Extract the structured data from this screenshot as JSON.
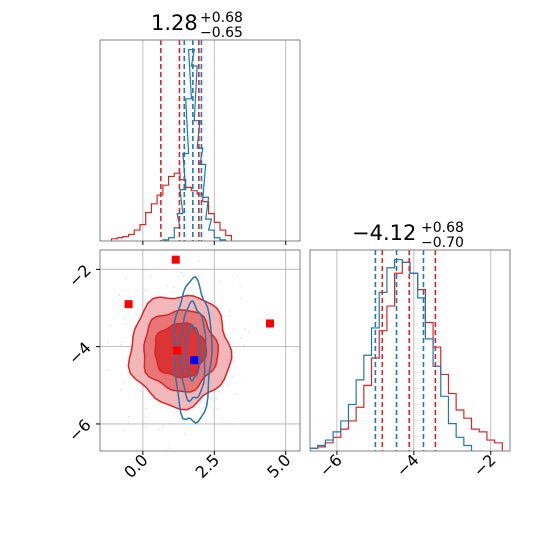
{
  "colors": {
    "red": "#d62728",
    "blue": "#1f77b4",
    "grid": "#b0b0b0",
    "frame": "#808080",
    "marker_red": "#ff0000",
    "marker_blue": "#0000ff"
  },
  "chart_data": [
    {
      "type": "line",
      "panel": "marginal-param-1",
      "title": {
        "value": "1.28",
        "upper": "+0.68",
        "lower": "−0.65"
      },
      "xlim": [
        -1.5,
        5.5
      ],
      "grid": true,
      "quantile_lines": [
        {
          "series": "red",
          "x": [
            0.63,
            1.28,
            1.96
          ]
        },
        {
          "series": "blue",
          "x": [
            1.45,
            1.75,
            2.05
          ]
        }
      ],
      "series": [
        {
          "color": "red",
          "x": [
            -1.0,
            -0.8,
            -0.6,
            -0.4,
            -0.2,
            0.0,
            0.2,
            0.4,
            0.6,
            0.8,
            1.0,
            1.2,
            1.4,
            1.6,
            1.8,
            2.0,
            2.2,
            2.4,
            2.6,
            2.8,
            3.0
          ],
          "y": [
            0.2,
            0.3,
            0.4,
            0.6,
            1.0,
            1.5,
            2.6,
            3.4,
            4.2,
            5.1,
            5.9,
            6.2,
            5.6,
            4.9,
            4.6,
            4.3,
            3.6,
            2.5,
            1.7,
            1.0,
            0.5
          ]
        },
        {
          "color": "blue",
          "x": [
            0.8,
            1.0,
            1.2,
            1.3,
            1.4,
            1.5,
            1.6,
            1.7,
            1.8,
            1.9,
            2.0,
            2.1,
            2.2,
            2.3,
            2.4,
            2.6,
            2.8
          ],
          "y": [
            0.1,
            0.3,
            1.2,
            2.5,
            4.7,
            8.0,
            13.0,
            17.5,
            16.0,
            11.0,
            8.5,
            7.0,
            4.0,
            2.0,
            1.0,
            0.3,
            0.1
          ]
        }
      ]
    },
    {
      "type": "scatter",
      "panel": "joint-2d",
      "xlim": [
        -1.5,
        5.5
      ],
      "ylim": [
        -6.7,
        -1.5
      ],
      "xticks": [
        "0.0",
        "2.5",
        "5.0"
      ],
      "yticks": [
        "−2",
        "−4",
        "−6"
      ],
      "grid": true,
      "red_markers": [
        {
          "x": 1.15,
          "y": -1.75
        },
        {
          "x": -0.5,
          "y": -2.9
        },
        {
          "x": 4.45,
          "y": -3.4
        },
        {
          "x": 1.2,
          "y": -4.1
        }
      ],
      "blue_markers": [
        {
          "x": 1.8,
          "y": -4.35
        }
      ],
      "red_contours": [
        {
          "cx": 1.3,
          "cy": -4.1,
          "rx": 1.75,
          "ry": 1.45
        },
        {
          "cx": 1.3,
          "cy": -4.1,
          "rx": 1.3,
          "ry": 1.05
        },
        {
          "cx": 1.3,
          "cy": -4.1,
          "rx": 0.9,
          "ry": 0.7
        }
      ],
      "blue_contours": [
        {
          "cx": 1.75,
          "cy": -4.15,
          "rx": 0.65,
          "ry": 1.85
        },
        {
          "cx": 1.75,
          "cy": -4.15,
          "rx": 0.45,
          "ry": 1.25
        },
        {
          "cx": 1.75,
          "cy": -4.15,
          "rx": 0.25,
          "ry": 0.7
        }
      ]
    },
    {
      "type": "line",
      "panel": "marginal-param-2",
      "title": {
        "value": "−4.12",
        "upper": "+0.68",
        "lower": "−0.70"
      },
      "xlim": [
        -6.7,
        -1.5
      ],
      "xticks": [
        "−6",
        "−4",
        "−2"
      ],
      "grid": true,
      "quantile_lines": [
        {
          "series": "red",
          "x": [
            -4.82,
            -4.12,
            -3.44
          ]
        },
        {
          "series": "blue",
          "x": [
            -5.0,
            -4.45,
            -3.75
          ]
        }
      ],
      "series": [
        {
          "color": "red",
          "x": [
            -6.6,
            -6.4,
            -6.2,
            -6.0,
            -5.8,
            -5.6,
            -5.4,
            -5.2,
            -5.0,
            -4.8,
            -4.6,
            -4.4,
            -4.2,
            -4.0,
            -3.8,
            -3.6,
            -3.4,
            -3.2,
            -3.0,
            -2.8,
            -2.6,
            -2.4,
            -2.2,
            -2.0,
            -1.8
          ],
          "y": [
            0.1,
            0.15,
            0.3,
            0.5,
            0.8,
            1.1,
            1.6,
            2.4,
            3.4,
            4.4,
            5.3,
            6.5,
            6.9,
            6.5,
            5.9,
            4.7,
            3.8,
            2.8,
            2.1,
            1.5,
            1.2,
            0.8,
            0.7,
            0.4,
            0.3
          ]
        },
        {
          "color": "blue",
          "x": [
            -6.6,
            -6.4,
            -6.2,
            -6.0,
            -5.8,
            -5.6,
            -5.4,
            -5.2,
            -5.0,
            -4.8,
            -4.6,
            -4.4,
            -4.2,
            -4.0,
            -3.8,
            -3.6,
            -3.4,
            -3.2,
            -3.0,
            -2.8,
            -2.6
          ],
          "y": [
            0.1,
            0.2,
            0.4,
            0.7,
            1.1,
            1.7,
            2.6,
            3.5,
            4.5,
            5.8,
            6.7,
            7.0,
            6.9,
            6.5,
            5.6,
            4.1,
            3.1,
            2.0,
            1.0,
            0.5,
            0.2
          ]
        }
      ]
    }
  ]
}
